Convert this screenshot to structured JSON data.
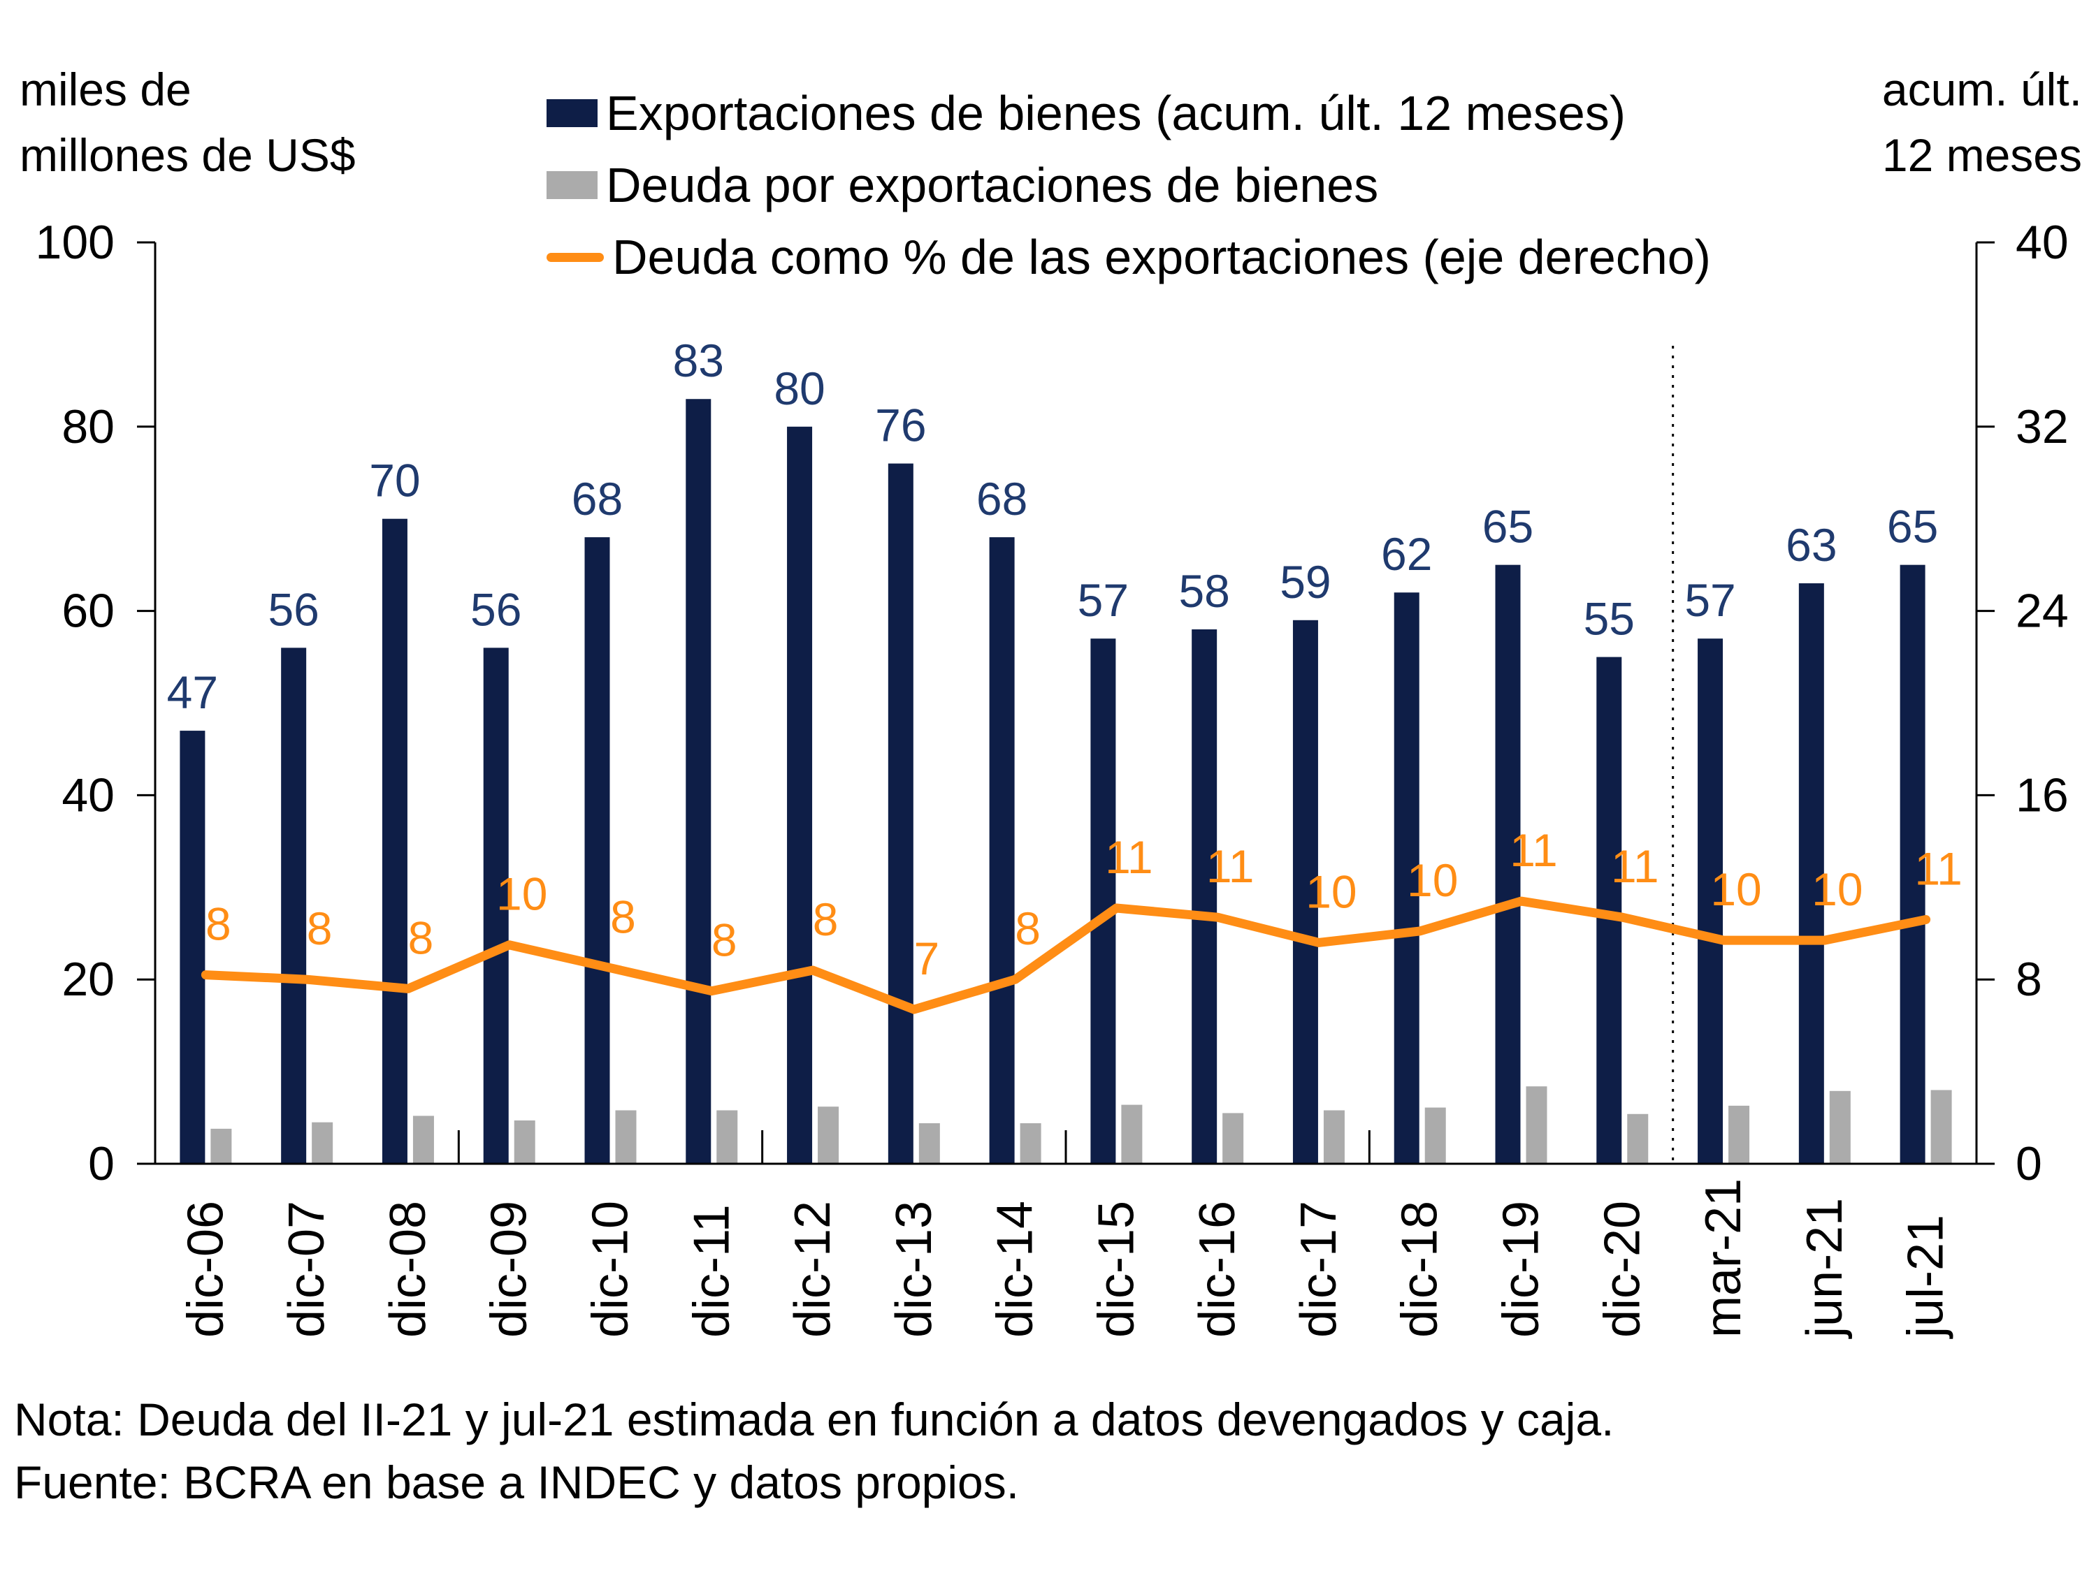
{
  "header": {
    "left_axis_unit_line1": "miles de",
    "left_axis_unit_line2": "millones de US$",
    "right_axis_unit_line1": "acum. últ.",
    "right_axis_unit_line2": "12 meses"
  },
  "legend": [
    {
      "label": "Exportaciones de bienes (acum. últ. 12 meses)",
      "color": "#0E1E47",
      "marker": "square"
    },
    {
      "label": "Deuda por exportaciones de bienes",
      "color": "#ABABAB",
      "marker": "square"
    },
    {
      "label": "Deuda como % de las exportaciones (eje derecho)",
      "color": "#FF8D15",
      "marker": "line"
    }
  ],
  "notes": {
    "note": "Nota: Deuda del II-21 y jul-21 estimada en función a datos devengados y caja.",
    "source": "Fuente: BCRA en base a INDEC y datos propios."
  },
  "chart_data": {
    "type": "bar",
    "subtype": "grouped-bars-with-line",
    "title": "",
    "categories": [
      "dic-06",
      "dic-07",
      "dic-08",
      "dic-09",
      "dic-10",
      "dic-11",
      "dic-12",
      "dic-13",
      "dic-14",
      "dic-15",
      "dic-16",
      "dic-17",
      "dic-18",
      "dic-19",
      "dic-20",
      "mar-21",
      "jun-21",
      "jul-21"
    ],
    "series": [
      {
        "name": "Exportaciones de bienes (acum. últ. 12 meses)",
        "type": "bar",
        "axis": "left",
        "color": "#0E1E47",
        "label_color": "#1F3A6E",
        "values": [
          47,
          56,
          70,
          56,
          68,
          83,
          80,
          76,
          68,
          57,
          58,
          59,
          62,
          65,
          55,
          57,
          63,
          65
        ],
        "labels": [
          "47",
          "56",
          "70",
          "56",
          "68",
          "83",
          "80",
          "76",
          "68",
          "57",
          "58",
          "59",
          "62",
          "65",
          "55",
          "57",
          "63",
          "65"
        ]
      },
      {
        "name": "Deuda por exportaciones de bienes",
        "type": "bar",
        "axis": "left",
        "color": "#ABABAB",
        "values": [
          3.8,
          4.5,
          5.2,
          4.7,
          5.8,
          5.8,
          6.2,
          4.4,
          4.4,
          6.4,
          5.5,
          5.8,
          6.1,
          8.4,
          5.4,
          6.3,
          7.9,
          8.0
        ]
      },
      {
        "name": "Deuda como % de las exportaciones (eje derecho)",
        "type": "line",
        "axis": "right",
        "color": "#FF8D15",
        "values": [
          8.2,
          8.0,
          7.6,
          9.5,
          8.5,
          7.5,
          8.4,
          6.7,
          8.0,
          11.1,
          10.7,
          9.6,
          10.1,
          11.4,
          10.7,
          9.7,
          9.7,
          10.6
        ],
        "labels": [
          "8",
          "8",
          "8",
          "10",
          "8",
          "8",
          "8",
          "7",
          "8",
          "11",
          "11",
          "10",
          "10",
          "11",
          "11",
          "10",
          "10",
          "11"
        ]
      }
    ],
    "left_axis": {
      "min": 0,
      "max": 100,
      "ticks": [
        0,
        20,
        40,
        60,
        80,
        100
      ],
      "label": "miles de millones de US$"
    },
    "right_axis": {
      "min": 0,
      "max": 40,
      "ticks": [
        0,
        8,
        16,
        24,
        32,
        40
      ],
      "label": "acum. últ. 12 meses"
    },
    "separator_boundary_index": 15,
    "minor_tick_boundaries": [
      3,
      6,
      9,
      12
    ],
    "grid": "off",
    "legend_position": "top"
  }
}
